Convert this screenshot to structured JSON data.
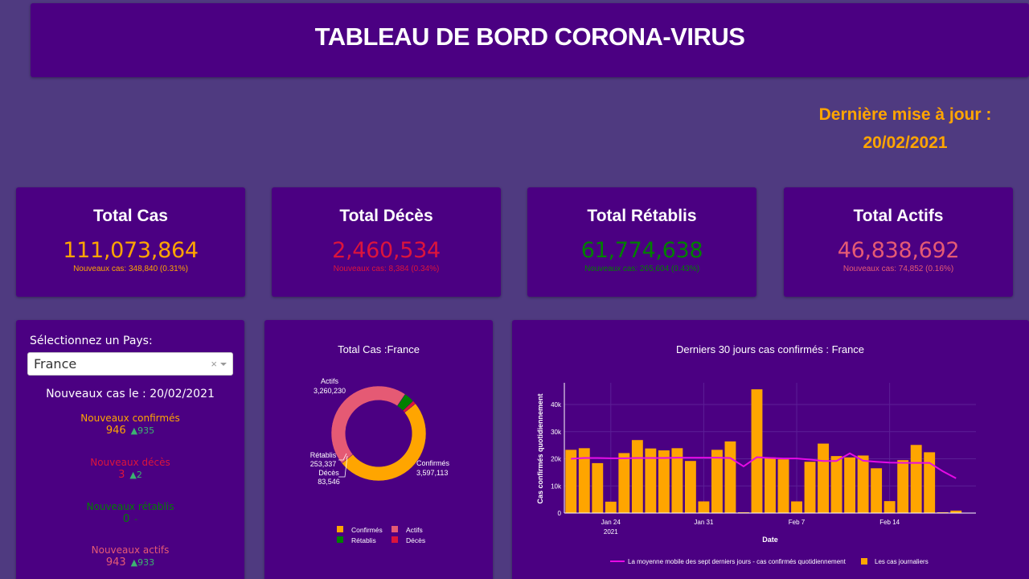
{
  "header": {
    "title": "TABLEAU DE BORD CORONA-VIRUS"
  },
  "update": {
    "label": "Dernière mise à jour :",
    "date": "20/02/2021"
  },
  "colors": {
    "confirmed": "#ffa500",
    "deaths": "#dc143c",
    "recovered": "#008000",
    "active": "#e55a74",
    "background": "#4f3a80",
    "card": "#4b0082"
  },
  "stats": [
    {
      "title": "Total Cas",
      "value": "111,073,864",
      "sub": "Nouveaux cas: 348,840 (0.31%)",
      "color": "#ffa500"
    },
    {
      "title": "Total Décès",
      "value": "2,460,534",
      "sub": "Nouveaux cas: 8,384 (0.34%)",
      "color": "#dc143c"
    },
    {
      "title": "Total Rétablis",
      "value": "61,774,638",
      "sub": "Nouveaux cas: 265,604 (0.43%)",
      "color": "#008000"
    },
    {
      "title": "Total Actifs",
      "value": "46,838,692",
      "sub": "Nouveaux cas: 74,852 (0.16%)",
      "color": "#e55a74"
    }
  ],
  "country": {
    "label": "Sélectionnez un Pays:",
    "selected": "France",
    "clear": "×",
    "new_cases_title": "Nouveaux cas le : 20/02/2021",
    "metrics": [
      {
        "label": "Nouveaux confirmés",
        "value": "946",
        "delta": "▲935",
        "color": "#ffa500"
      },
      {
        "label": "Nouveaux décès",
        "value": "3",
        "delta": "▲2",
        "color": "#dc143c"
      },
      {
        "label": "Nouveaux rétablis",
        "value": "0",
        "delta": "-",
        "color": "#008000"
      },
      {
        "label": "Nouveaux actifs",
        "value": "943",
        "delta": "▲933",
        "color": "#e55a74"
      }
    ]
  },
  "chart_data": [
    {
      "type": "pie",
      "title": "Total Cas :France",
      "labels": [
        "Confirmés",
        "Actifs",
        "Rétablis",
        "Décès"
      ],
      "values": [
        3597113,
        3260230,
        253337,
        83546
      ],
      "value_labels": [
        "3,597,113",
        "3,260,230",
        "253,337",
        "83,546"
      ],
      "colors": [
        "#ffa500",
        "#e55a74",
        "#008000",
        "#dc143c"
      ],
      "hole": 0.7,
      "legend": [
        "Confirmés",
        "Actifs",
        "Rétablis",
        "Décès"
      ]
    },
    {
      "type": "bar",
      "title": "Derniers 30 jours cas confirmés : France",
      "xlabel": "Date",
      "ylabel": "Cas confirmés quotidiennement",
      "ylim": [
        0,
        48000
      ],
      "yticks": [
        "0",
        "10k",
        "20k",
        "30k",
        "40k"
      ],
      "ytick_values": [
        0,
        10000,
        20000,
        30000,
        40000
      ],
      "xticks": [
        "Jan 24",
        "Jan 31",
        "Feb 7",
        "Feb 14"
      ],
      "xtick_sub": "2021",
      "dates": [
        "Jan 21",
        "Jan 22",
        "Jan 23",
        "Jan 24",
        "Jan 25",
        "Jan 26",
        "Jan 27",
        "Jan 28",
        "Jan 29",
        "Jan 30",
        "Jan 31",
        "Feb 1",
        "Feb 2",
        "Feb 3",
        "Feb 4",
        "Feb 5",
        "Feb 6",
        "Feb 7",
        "Feb 8",
        "Feb 9",
        "Feb 10",
        "Feb 11",
        "Feb 12",
        "Feb 13",
        "Feb 14",
        "Feb 15",
        "Feb 16",
        "Feb 17",
        "Feb 18",
        "Feb 19",
        "Feb 20"
      ],
      "series": [
        {
          "name": "Les cas journaliers",
          "kind": "bar",
          "color": "#ffa500",
          "values": [
            23300,
            23900,
            18400,
            4200,
            22100,
            26900,
            23800,
            23100,
            23900,
            19200,
            4300,
            23300,
            26400,
            300,
            45600,
            20500,
            19800,
            4300,
            18900,
            25600,
            21000,
            20500,
            21200,
            16500,
            4400,
            19500,
            25100,
            22400,
            300,
            900,
            null
          ]
        },
        {
          "name": "La moyenne mobile des sept derniers jours - cas confirmés quotidiennement",
          "kind": "line",
          "color": "#e60ae6",
          "values": [
            20000,
            20300,
            20300,
            20200,
            20200,
            20300,
            20300,
            20300,
            20400,
            20400,
            20400,
            20400,
            20300,
            17200,
            20600,
            20300,
            20100,
            20100,
            19700,
            19200,
            19200,
            22000,
            19300,
            18900,
            18600,
            18500,
            18500,
            18500,
            15400,
            12800,
            null
          ]
        }
      ],
      "legend": [
        "La moyenne mobile des sept derniers jours - cas confirmés quotidiennement",
        "Les cas journaliers"
      ]
    }
  ]
}
